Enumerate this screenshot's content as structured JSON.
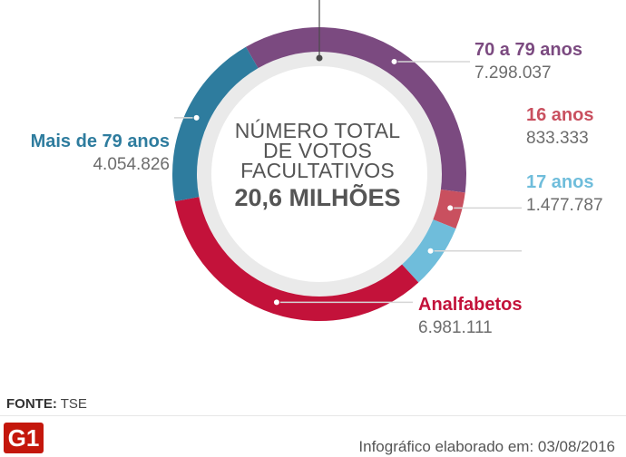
{
  "chart_data": {
    "type": "pie",
    "title": "NÚMERO TOTAL DE VOTOS FACULTATIVOS",
    "total_label": "20,6 MILHÕES",
    "slices": [
      {
        "name": "70 a 79 anos",
        "label": "7.298.037",
        "value": 7298037,
        "color": "#7b4a80"
      },
      {
        "name": "16 anos",
        "label": "833.333",
        "value": 833333,
        "color": "#c9505f"
      },
      {
        "name": "17 anos",
        "label": "1.477.787",
        "value": 1477787,
        "color": "#6fbddb"
      },
      {
        "name": "Analfabetos",
        "label": "6.981.111",
        "value": 6981111,
        "color": "#c3123a"
      },
      {
        "name": "Mais de 79 anos",
        "label": "4.054.826",
        "value": 4054826,
        "color": "#2e7c9e"
      }
    ]
  },
  "center": {
    "line1": "NÚMERO TOTAL",
    "line2": "DE VOTOS",
    "line3": "FACULTATIVOS",
    "total": "20,6 MILHÕES"
  },
  "footer": {
    "source_label": "FONTE:",
    "source_value": "TSE",
    "logo": "G1",
    "credit": "Infográfico elaborado em: 03/08/2016"
  },
  "colors": {
    "track": "#eaeaea",
    "leader": "#bdbdbd",
    "text": "#555555"
  }
}
